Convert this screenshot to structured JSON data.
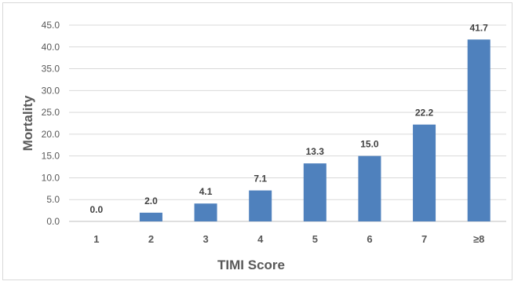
{
  "chart_data": {
    "type": "bar",
    "title": "",
    "xlabel": "TIMI Score",
    "ylabel": "Mortality",
    "categories": [
      "1",
      "2",
      "3",
      "4",
      "5",
      "6",
      "7",
      "≥8"
    ],
    "values": [
      0.0,
      2.0,
      4.1,
      7.1,
      13.3,
      15.0,
      22.2,
      41.7
    ],
    "data_labels": [
      "0.0",
      "2.0",
      "4.1",
      "7.1",
      "13.3",
      "15.0",
      "22.2",
      "41.7"
    ],
    "ylim": [
      0,
      45
    ],
    "y_ticks": [
      0,
      5,
      10,
      15,
      20,
      25,
      30,
      35,
      40,
      45
    ],
    "y_tick_labels": [
      "0.0",
      "5.0",
      "10.0",
      "15.0",
      "20.0",
      "25.0",
      "30.0",
      "35.0",
      "40.0",
      "45.0"
    ],
    "grid": true,
    "legend": "none",
    "bar_color": "#4f81bd"
  }
}
